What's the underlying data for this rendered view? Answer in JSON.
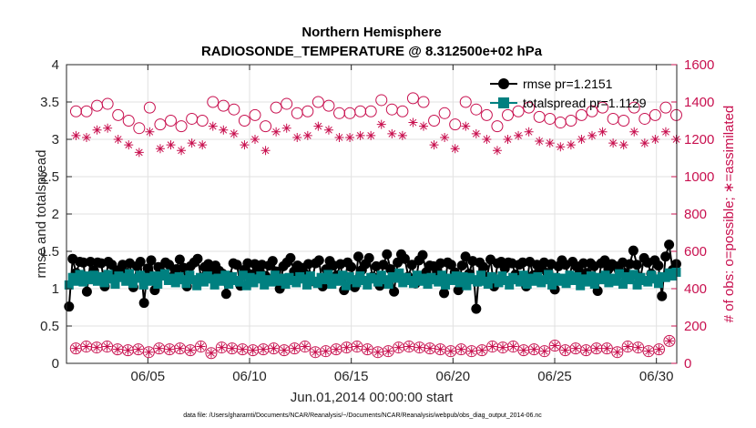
{
  "colors": {
    "rmse": "#000000",
    "spread": "#008080",
    "obs": "#c8104f",
    "grid": "#e1e1e1",
    "axis": "#262626"
  },
  "chart_data": {
    "type": "line",
    "title": "Northern Hemisphere",
    "subtitle": "RADIOSONDE_TEMPERATURE @ 8.312500e+02 hPa",
    "xlabel": "Jun.01,2014 00:00:00 start",
    "ylabel": "rmse and totalspread",
    "y2label": "# of obs: o=possible; ∗=assimilated",
    "footnote": "data file: /Users/gharamti/Documents/NCAR/Reanalysis/~/Documents/NCAR/Reanalysis/webpub/obs_diag_output_2014-06.nc",
    "xlim": [
      1,
      31
    ],
    "ylim": [
      0,
      4
    ],
    "y2lim": [
      0,
      1600
    ],
    "xticks": [
      5,
      10,
      15,
      20,
      25,
      30
    ],
    "xtick_labels": [
      "06/05",
      "06/10",
      "06/15",
      "06/20",
      "06/25",
      "06/30"
    ],
    "yticks": [
      0,
      0.5,
      1,
      1.5,
      2,
      2.5,
      3,
      3.5,
      4
    ],
    "ytick_labels": [
      "0",
      "0.5",
      "1",
      "1.5",
      "2",
      "2.5",
      "3",
      "3.5",
      "4"
    ],
    "y2ticks": [
      0,
      200,
      400,
      600,
      800,
      1000,
      1200,
      1400,
      1600
    ],
    "y2tick_labels": [
      "0",
      "200",
      "400",
      "600",
      "800",
      "1000",
      "1200",
      "1400",
      "1600"
    ],
    "legend": [
      "rmse pr=1.2151",
      "totalspread pr=1.1129"
    ],
    "legend_position": "top-right",
    "series": [
      {
        "name": "rmse",
        "values": [
          1.27,
          0.76,
          1.4,
          1.21,
          1.36,
          1.35,
          0.96,
          1.36,
          1.24,
          1.35,
          1.34,
          1.03,
          1.36,
          1.32,
          1.21,
          1.25,
          1.32,
          1.21,
          1.34,
          1.02,
          1.3,
          1.36,
          0.81,
          1.27,
          1.38,
          0.98,
          1.29,
          1.21,
          1.35,
          1.32,
          1.16,
          1.26,
          1.39,
          1.28,
          1.03,
          1.3,
          1.35,
          1.4,
          1.15,
          1.29,
          1.33,
          1.21,
          1.31,
          1.24,
          1.2,
          0.93,
          1.17,
          1.34,
          1.32,
          1.04,
          1.25,
          1.34,
          1.19,
          1.33,
          1.25,
          1.32,
          1.17,
          1.31,
          1.37,
          1.23,
          1.0,
          1.3,
          1.35,
          1.41,
          1.23,
          1.31,
          1.28,
          1.2,
          1.33,
          1.1,
          1.34,
          1.38,
          1.03,
          1.26,
          1.37,
          1.31,
          1.18,
          1.33,
          0.98,
          1.35,
          1.29,
          1.02,
          1.43,
          1.25,
          1.33,
          1.41,
          1.16,
          1.3,
          1.04,
          1.32,
          1.46,
          1.26,
          0.96,
          1.35,
          1.46,
          1.4,
          1.16,
          1.32,
          1.07,
          1.38,
          1.45,
          1.22,
          1.31,
          1.3,
          1.22,
          1.34,
          0.94,
          1.35,
          1.32,
          1.22,
          0.98,
          1.31,
          1.43,
          1.2,
          1.37,
          0.73,
          1.35,
          1.29,
          1.16,
          1.39,
          1.03,
          1.34,
          1.36,
          1.27,
          1.35,
          1.34,
          1.19,
          1.32,
          1.35,
          1.03,
          1.36,
          1.18,
          1.32,
          1.26,
          1.35,
          1.21,
          1.33,
          0.99,
          1.3,
          1.38,
          1.32,
          1.13,
          1.36,
          1.3,
          1.22,
          1.34,
          1.21,
          1.34,
          1.3,
          0.97,
          1.34,
          1.38,
          1.26,
          1.33,
          1.3,
          1.24,
          1.35,
          1.21,
          1.33,
          1.51,
          1.32,
          1.15,
          1.41,
          1.35,
          1.2,
          1.38,
          1.31,
          0.9,
          1.43,
          1.59,
          1.25,
          1.33,
          1.63
        ]
      },
      {
        "name": "totalspread",
        "values": [
          1.18,
          1.05,
          1.15,
          1.1,
          1.19,
          1.09,
          1.17,
          1.12,
          1.18,
          1.1,
          1.16,
          1.08,
          1.19,
          1.13,
          1.06,
          1.17,
          1.15,
          1.1,
          1.2,
          1.07,
          1.14,
          1.18,
          1.05,
          1.15,
          1.1,
          1.17,
          1.06,
          1.17,
          1.2,
          1.11,
          1.14,
          1.08,
          1.16,
          1.12,
          1.07,
          1.18,
          1.12,
          1.04,
          1.15,
          1.09,
          1.17,
          1.13,
          1.05,
          1.14,
          1.1,
          1.18,
          1.06,
          1.16,
          1.11,
          1.09,
          1.18,
          1.04,
          1.15,
          1.08,
          1.13,
          1.17,
          1.05,
          1.12,
          1.09,
          1.18,
          1.1,
          1.14,
          1.06,
          1.15,
          1.11,
          1.08,
          1.16,
          1.13,
          1.05,
          1.17,
          1.1,
          1.07,
          1.15,
          1.12,
          1.19,
          1.06,
          1.14,
          1.1,
          1.18,
          1.04,
          1.16,
          1.12,
          1.08,
          1.17,
          1.11,
          1.05,
          1.15,
          1.13,
          1.09,
          1.18,
          1.12,
          1.06,
          1.16,
          1.14,
          1.21,
          1.08,
          1.15,
          1.11,
          1.07,
          1.18,
          1.1,
          1.14,
          1.06,
          1.15,
          1.12,
          1.09,
          1.18,
          1.05,
          1.14,
          1.11,
          1.17,
          1.08,
          1.16,
          1.04,
          1.15,
          1.12,
          1.09,
          1.18,
          1.1,
          1.06,
          1.16,
          1.13,
          1.08,
          1.17,
          1.11,
          1.05,
          1.15,
          1.12,
          1.09,
          1.18,
          1.06,
          1.14,
          1.1,
          1.16,
          1.08,
          1.12,
          1.19,
          1.05,
          1.15,
          1.1,
          1.14,
          1.07,
          1.18,
          1.11,
          1.16,
          1.04,
          1.13,
          1.09,
          1.17,
          1.06,
          1.15,
          1.12,
          1.18,
          1.08,
          1.14,
          1.1,
          1.2,
          1.06,
          1.16,
          1.12,
          1.19,
          1.05,
          1.15,
          1.11,
          1.09,
          1.18,
          1.13,
          1.07,
          1.16,
          1.15,
          1.21,
          1.17,
          1.22,
          1.18
        ]
      },
      {
        "name": "possible",
        "values": [
          1290,
          1340,
          1380,
          1350,
          1400,
          1420,
          1350,
          1320,
          1270,
          1380,
          1340,
          1300,
          1390,
          1360,
          1280,
          1330,
          1410,
          1340,
          1300,
          1380,
          1350,
          1260,
          1320,
          1400,
          1370,
          1290,
          1340,
          1280,
          1360,
          1410,
          1300,
          1350,
          1340,
          1270,
          1420,
          1360,
          1310,
          1340,
          1380,
          1300,
          1350,
          1340,
          1400,
          1330,
          1290,
          1380,
          1350,
          1330,
          1360,
          1270,
          1340,
          1300,
          1410,
          1350,
          1330,
          1380,
          1310,
          1270,
          1350,
          1400,
          1370,
          1290,
          1330,
          1390,
          1410,
          1300,
          1340,
          1370,
          1330,
          1350,
          1390,
          1280,
          1400,
          1320,
          1300,
          1380,
          1350,
          1300,
          1340,
          1380,
          1410,
          1340,
          1290,
          1400,
          1350,
          1330,
          1380,
          1350,
          1300,
          1330,
          1410,
          1380,
          1340,
          1360,
          1400,
          1300,
          1350,
          1380,
          1330,
          1420,
          1310,
          1350,
          1400,
          1380,
          1360,
          1300,
          1330,
          1390,
          1340,
          1370,
          1310,
          1280,
          1380,
          1350,
          1400,
          1320,
          1290,
          1360,
          1340,
          1410,
          1330,
          1380,
          1300,
          1270,
          1350,
          1390,
          1330,
          1400,
          1310,
          1350,
          1360,
          1300,
          1370,
          1340,
          1400,
          1320,
          1350,
          1380,
          1310,
          1330,
          1410,
          1290,
          1350,
          1370,
          1300,
          1360,
          1400,
          1330,
          1280,
          1380,
          1350,
          1340,
          1300,
          1370,
          1400,
          1330,
          1310,
          1380,
          1360,
          1300,
          1280,
          1350,
          1370,
          1340,
          1390,
          1310,
          1350,
          1380,
          1330,
          1360,
          1300,
          1370,
          1350,
          1320,
          1330,
          1370
        ]
      },
      {
        "name": "assimilated",
        "values": [
          1150,
          1200,
          1250,
          1220,
          1270,
          1300,
          1210,
          1190,
          1140,
          1250,
          1200,
          1160,
          1260,
          1220,
          1150,
          1200,
          1270,
          1210,
          1170,
          1250,
          1210,
          1130,
          1190,
          1270,
          1240,
          1160,
          1210,
          1150,
          1230,
          1280,
          1170,
          1220,
          1210,
          1140,
          1290,
          1230,
          1180,
          1210,
          1250,
          1170,
          1220,
          1210,
          1270,
          1200,
          1160,
          1250,
          1220,
          1200,
          1230,
          1140,
          1210,
          1170,
          1280,
          1220,
          1200,
          1250,
          1180,
          1140,
          1220,
          1270,
          1240,
          1160,
          1200,
          1260,
          1280,
          1170,
          1210,
          1240,
          1200,
          1220,
          1260,
          1150,
          1270,
          1190,
          1170,
          1250,
          1220,
          1170,
          1210,
          1250,
          1080,
          1210,
          1160,
          1270,
          1220,
          1200,
          1250,
          1220,
          1170,
          1200,
          1280,
          1250,
          1210,
          1230,
          1270,
          1170,
          1220,
          1250,
          1200,
          1290,
          1180,
          1220,
          1270,
          1250,
          1230,
          1170,
          1200,
          1260,
          1210,
          1240,
          1180,
          1150,
          1250,
          1220,
          1270,
          1190,
          1160,
          1230,
          1210,
          1280,
          1200,
          1250,
          1170,
          1140,
          1220,
          1260,
          1200,
          1270,
          1180,
          1220,
          1230,
          1170,
          1240,
          1210,
          1270,
          1190,
          1220,
          1250,
          1180,
          1200,
          1280,
          1160,
          1220,
          1240,
          1170,
          1230,
          1270,
          1200,
          1150,
          1250,
          1220,
          1210,
          1170,
          1240,
          1270,
          1200,
          1180,
          1250,
          1230,
          1170,
          1150,
          1220,
          1240,
          1210,
          1260,
          1180,
          1220,
          1250,
          1200,
          1230,
          1170,
          1240,
          1220,
          1190,
          1200,
          1240
        ]
      },
      {
        "name": "possible_low",
        "values": [
          55,
          60,
          65,
          80,
          70,
          60,
          90,
          55,
          70,
          85,
          75,
          80,
          90,
          70,
          85,
          75,
          60,
          85,
          70,
          80,
          65,
          75,
          90,
          85,
          60,
          50,
          70,
          80,
          65,
          55,
          75,
          60,
          65,
          80,
          55,
          50,
          70,
          60,
          75,
          90,
          65,
          80,
          55,
          60,
          75,
          85,
          60,
          70,
          80,
          95,
          65,
          75,
          100,
          60,
          70,
          85,
          65,
          75,
          90,
          70,
          80,
          85,
          60,
          70,
          95,
          75,
          80,
          70,
          65,
          90,
          80,
          70,
          60,
          95,
          75,
          65,
          80,
          70,
          75,
          95,
          70,
          85,
          60,
          80,
          90,
          70,
          65,
          75,
          85,
          70,
          60,
          95,
          80,
          65,
          75,
          70,
          85,
          80,
          70,
          90,
          75,
          65,
          85,
          70,
          60,
          80,
          95,
          70,
          75,
          90,
          85,
          65,
          70,
          80,
          75,
          90,
          70,
          65,
          85,
          80,
          70,
          75,
          65,
          90,
          70,
          80,
          85,
          70,
          75,
          90,
          80,
          65,
          70,
          85,
          80,
          75,
          90,
          70,
          65,
          80,
          75,
          95,
          70,
          80,
          70,
          85,
          75,
          80,
          90,
          75,
          70,
          85,
          75,
          80,
          70,
          65,
          80,
          75,
          70,
          60,
          85,
          80,
          90,
          75,
          70,
          85,
          75,
          80,
          65,
          70,
          80,
          75,
          90,
          95,
          120,
          85,
          110,
          80
        ]
      },
      {
        "name": "assimilated_low",
        "values": [
          55,
          60,
          65,
          80,
          70,
          60,
          90,
          55,
          70,
          85,
          75,
          80,
          90,
          70,
          85,
          75,
          60,
          85,
          70,
          80,
          65,
          75,
          90,
          85,
          60,
          50,
          70,
          80,
          65,
          55,
          75,
          60,
          65,
          80,
          55,
          50,
          70,
          60,
          75,
          90,
          65,
          80,
          55,
          60,
          75,
          85,
          60,
          70,
          80,
          95,
          65,
          75,
          100,
          60,
          70,
          85,
          65,
          75,
          90,
          70,
          80,
          85,
          60,
          70,
          95,
          75,
          80,
          70,
          65,
          90,
          80,
          70,
          60,
          95,
          75,
          65,
          80,
          70,
          75,
          95,
          70,
          85,
          60,
          80,
          90,
          70,
          65,
          75,
          85,
          70,
          60,
          95,
          80,
          65,
          75,
          70,
          85,
          80,
          70,
          90,
          75,
          65,
          85,
          70,
          60,
          80,
          95,
          70,
          75,
          90,
          85,
          65,
          70,
          80,
          75,
          90,
          70,
          65,
          85,
          80,
          70,
          75,
          65,
          90,
          70,
          80,
          85,
          70,
          75,
          90,
          80,
          65,
          70,
          85,
          80,
          75,
          90,
          70,
          65,
          80,
          75,
          95,
          70,
          80,
          70,
          85,
          75,
          80,
          90,
          75,
          70,
          85,
          75,
          80,
          70,
          65,
          80,
          75,
          70,
          60,
          85,
          80,
          90,
          75,
          70,
          85,
          75,
          80,
          65,
          70,
          80,
          75,
          90,
          95,
          120,
          85,
          110,
          80
        ]
      }
    ]
  }
}
